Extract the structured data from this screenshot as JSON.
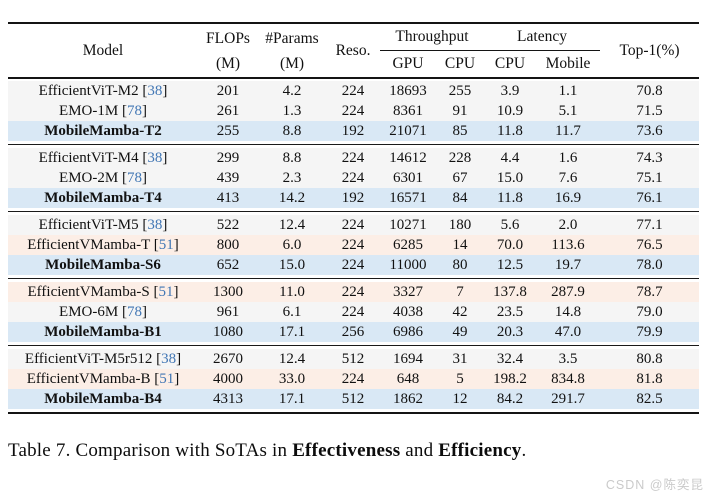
{
  "colors": {
    "row_gray": "#f5f5f5",
    "row_blue": "#d9e8f5",
    "row_pink": "#fceee6",
    "citation": "#4176b4",
    "rule": "#141414",
    "watermark": "#bdbdbd"
  },
  "table": {
    "columns": {
      "model": "Model",
      "flops": "FLOPs",
      "flops_unit": "(M)",
      "params": "#Params",
      "params_unit": "(M)",
      "reso": "Reso.",
      "throughput": "Throughput",
      "latency": "Latency",
      "gpu": "GPU",
      "cpu_tp": "CPU",
      "cpu_lat": "CPU",
      "mobile": "Mobile",
      "top1": "Top-1(%)"
    },
    "groups": [
      {
        "rows": [
          {
            "model": "EfficientViT-M2",
            "ref": "38",
            "flops": "201",
            "params": "4.2",
            "reso": "224",
            "gpu": "18693",
            "cpu_tp": "255",
            "cpu_lat": "3.9",
            "mobile": "1.1",
            "top1": "70.8",
            "style": "gray",
            "bold": false
          },
          {
            "model": "EMO-1M",
            "ref": "78",
            "flops": "261",
            "params": "1.3",
            "reso": "224",
            "gpu": "8361",
            "cpu_tp": "91",
            "cpu_lat": "10.9",
            "mobile": "5.1",
            "top1": "71.5",
            "style": "gray",
            "bold": false
          },
          {
            "model": "MobileMamba-T2",
            "ref": null,
            "flops": "255",
            "params": "8.8",
            "reso": "192",
            "gpu": "21071",
            "cpu_tp": "85",
            "cpu_lat": "11.8",
            "mobile": "11.7",
            "top1": "73.6",
            "style": "blue",
            "bold": true
          }
        ]
      },
      {
        "rows": [
          {
            "model": "EfficientViT-M4",
            "ref": "38",
            "flops": "299",
            "params": "8.8",
            "reso": "224",
            "gpu": "14612",
            "cpu_tp": "228",
            "cpu_lat": "4.4",
            "mobile": "1.6",
            "top1": "74.3",
            "style": "gray",
            "bold": false
          },
          {
            "model": "EMO-2M",
            "ref": "78",
            "flops": "439",
            "params": "2.3",
            "reso": "224",
            "gpu": "6301",
            "cpu_tp": "67",
            "cpu_lat": "15.0",
            "mobile": "7.6",
            "top1": "75.1",
            "style": "gray",
            "bold": false
          },
          {
            "model": "MobileMamba-T4",
            "ref": null,
            "flops": "413",
            "params": "14.2",
            "reso": "192",
            "gpu": "16571",
            "cpu_tp": "84",
            "cpu_lat": "11.8",
            "mobile": "16.9",
            "top1": "76.1",
            "style": "blue",
            "bold": true
          }
        ]
      },
      {
        "rows": [
          {
            "model": "EfficientViT-M5",
            "ref": "38",
            "flops": "522",
            "params": "12.4",
            "reso": "224",
            "gpu": "10271",
            "cpu_tp": "180",
            "cpu_lat": "5.6",
            "mobile": "2.0",
            "top1": "77.1",
            "style": "gray",
            "bold": false
          },
          {
            "model": "EfficientVMamba-T",
            "ref": "51",
            "flops": "800",
            "params": "6.0",
            "reso": "224",
            "gpu": "6285",
            "cpu_tp": "14",
            "cpu_lat": "70.0",
            "mobile": "113.6",
            "top1": "76.5",
            "style": "pink",
            "bold": false
          },
          {
            "model": "MobileMamba-S6",
            "ref": null,
            "flops": "652",
            "params": "15.0",
            "reso": "224",
            "gpu": "11000",
            "cpu_tp": "80",
            "cpu_lat": "12.5",
            "mobile": "19.7",
            "top1": "78.0",
            "style": "blue",
            "bold": true
          }
        ]
      },
      {
        "rows": [
          {
            "model": "EfficientVMamba-S",
            "ref": "51",
            "flops": "1300",
            "params": "11.0",
            "reso": "224",
            "gpu": "3327",
            "cpu_tp": "7",
            "cpu_lat": "137.8",
            "mobile": "287.9",
            "top1": "78.7",
            "style": "pink",
            "bold": false
          },
          {
            "model": "EMO-6M",
            "ref": "78",
            "flops": "961",
            "params": "6.1",
            "reso": "224",
            "gpu": "4038",
            "cpu_tp": "42",
            "cpu_lat": "23.5",
            "mobile": "14.8",
            "top1": "79.0",
            "style": "gray",
            "bold": false
          },
          {
            "model": "MobileMamba-B1",
            "ref": null,
            "flops": "1080",
            "params": "17.1",
            "reso": "256",
            "gpu": "6986",
            "cpu_tp": "49",
            "cpu_lat": "20.3",
            "mobile": "47.0",
            "top1": "79.9",
            "style": "blue",
            "bold": true
          }
        ]
      },
      {
        "rows": [
          {
            "model": "EfficientViT-M5r512",
            "ref": "38",
            "flops": "2670",
            "params": "12.4",
            "reso": "512",
            "gpu": "1694",
            "cpu_tp": "31",
            "cpu_lat": "32.4",
            "mobile": "3.5",
            "top1": "80.8",
            "style": "gray",
            "bold": false
          },
          {
            "model": "EfficientVMamba-B",
            "ref": "51",
            "flops": "4000",
            "params": "33.0",
            "reso": "224",
            "gpu": "648",
            "cpu_tp": "5",
            "cpu_lat": "198.2",
            "mobile": "834.8",
            "top1": "81.8",
            "style": "pink",
            "bold": false
          },
          {
            "model": "MobileMamba-B4",
            "ref": null,
            "flops": "4313",
            "params": "17.1",
            "reso": "512",
            "gpu": "1862",
            "cpu_tp": "12",
            "cpu_lat": "84.2",
            "mobile": "291.7",
            "top1": "82.5",
            "style": "blue",
            "bold": true
          }
        ]
      }
    ]
  },
  "caption": {
    "prefix": "Table 7. Comparison with SoTAs in ",
    "bold1": "Effectiveness",
    "mid": " and ",
    "bold2": "Efficiency",
    "suffix": "."
  },
  "watermark": "CSDN @陈奕昆"
}
